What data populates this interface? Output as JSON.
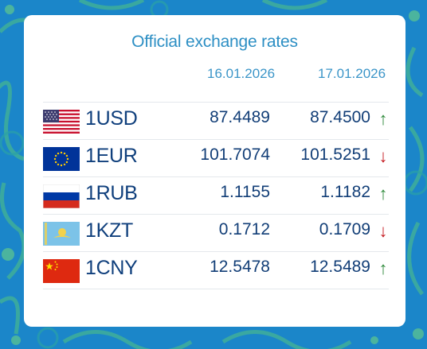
{
  "widget": {
    "title": "Official exchange rates",
    "date_1": "16.01.2026",
    "date_2": "17.01.2026"
  },
  "colors": {
    "background": "#1b86c9",
    "title": "#2d8fc4",
    "value": "#123e77",
    "up": "#2e8a3b",
    "down": "#c4161c"
  },
  "rates": [
    {
      "code": "1USD",
      "flag": "us-flag-icon",
      "rate_1": "87.4489",
      "rate_2": "87.4500",
      "trend": "up",
      "arrow": "↑"
    },
    {
      "code": "1EUR",
      "flag": "eu-flag-icon",
      "rate_1": "101.7074",
      "rate_2": "101.5251",
      "trend": "down",
      "arrow": "↓"
    },
    {
      "code": "1RUB",
      "flag": "ru-flag-icon",
      "rate_1": "1.1155",
      "rate_2": "1.1182",
      "trend": "up",
      "arrow": "↑"
    },
    {
      "code": "1KZT",
      "flag": "kz-flag-icon",
      "rate_1": "0.1712",
      "rate_2": "0.1709",
      "trend": "down",
      "arrow": "↓"
    },
    {
      "code": "1CNY",
      "flag": "cn-flag-icon",
      "rate_1": "12.5478",
      "rate_2": "12.5489",
      "trend": "up",
      "arrow": "↑"
    }
  ]
}
